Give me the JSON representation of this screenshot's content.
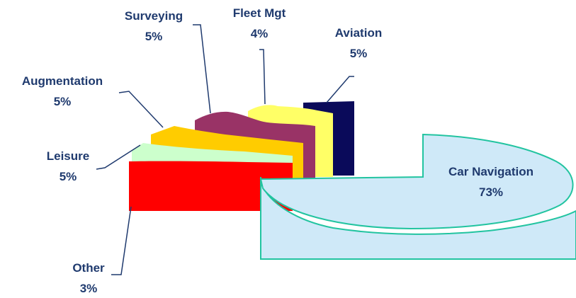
{
  "chart_data": {
    "type": "pie",
    "title": "",
    "slices": [
      {
        "label": "Car Navigation",
        "pct_label": "73%",
        "value": 73,
        "color": "#cfe9f8",
        "edge": "#22c4a0"
      },
      {
        "label": "Aviation",
        "pct_label": "5%",
        "value": 5,
        "color": "#0a0a5a"
      },
      {
        "label": "Fleet Mgt",
        "pct_label": "4%",
        "value": 4,
        "color": "#ffff66"
      },
      {
        "label": "Surveying",
        "pct_label": "5%",
        "value": 5,
        "color": "#993366"
      },
      {
        "label": "Augmentation",
        "pct_label": "5%",
        "value": 5,
        "color": "#ffcc00"
      },
      {
        "label": "Leisure",
        "pct_label": "5%",
        "value": 5,
        "color": "#ccffcc"
      },
      {
        "label": "Other",
        "pct_label": "3%",
        "value": 3,
        "color": "#ff0000"
      }
    ]
  }
}
